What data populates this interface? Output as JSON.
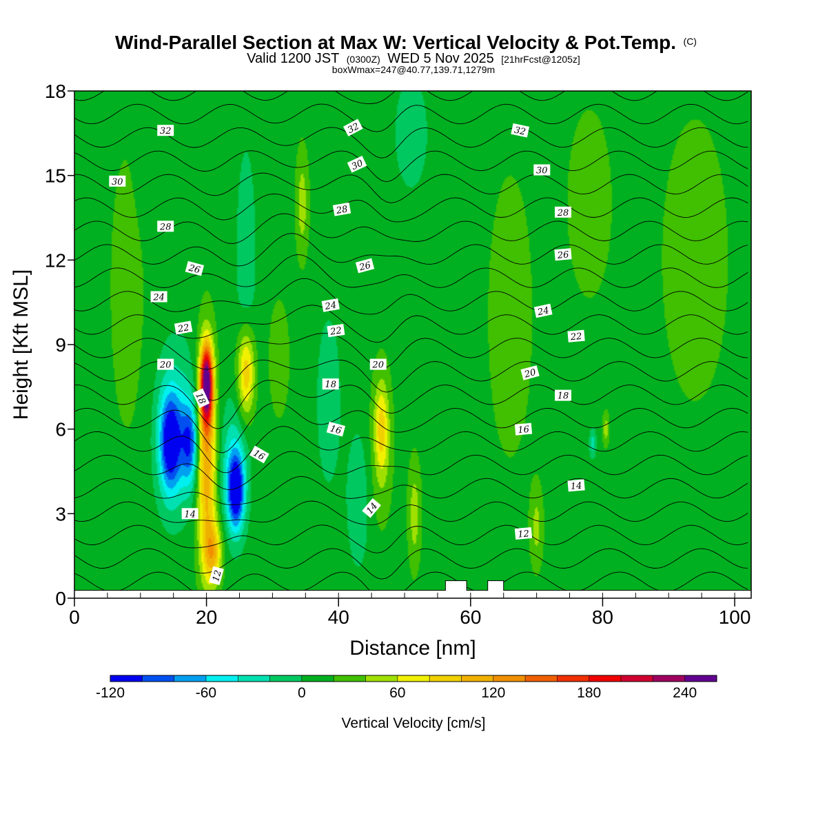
{
  "chart_data": {
    "type": "heatmap",
    "title": "Wind-Parallel Section at Max W: Vertical Velocity & Pot.Temp.",
    "title_mark": "(C)",
    "subtitle_parts": [
      "Valid 1200 JST",
      "(0300Z)",
      "WED 5 Nov 2025",
      "[21hrFcst@1205z]"
    ],
    "box_text": "boxWmax=247@40.77,139.71,1279m",
    "xlabel": "Distance [nm]",
    "ylabel": "Height [Kft MSL]",
    "xlim": [
      0,
      102.5
    ],
    "ylim": [
      0,
      18
    ],
    "x_ticks": [
      0,
      20,
      40,
      60,
      80,
      100
    ],
    "y_ticks": [
      0,
      3,
      6,
      9,
      12,
      15,
      18
    ],
    "colorbar": {
      "title": "Vertical Velocity [cm/s]",
      "min": -120,
      "step": 20,
      "labels": [
        -120,
        -60,
        0,
        60,
        120,
        180,
        240
      ],
      "colors": [
        "#0000f0",
        "#0050f0",
        "#00a0f0",
        "#00f0f0",
        "#00e0b0",
        "#00c860",
        "#00b020",
        "#40c000",
        "#a0e000",
        "#f0f000",
        "#f0d000",
        "#f0b000",
        "#f09000",
        "#f06000",
        "#f03000",
        "#f00000",
        "#d00030",
        "#a00060",
        "#600090"
      ]
    },
    "background_w": 10,
    "cells": [
      {
        "x": 14.5,
        "z": 5.5,
        "sx": 1.6,
        "sz": 1.7,
        "w": -115
      },
      {
        "x": 17.5,
        "z": 5.5,
        "sx": 1.3,
        "sz": 1.5,
        "w": -90
      },
      {
        "x": 15.5,
        "z": 6.0,
        "sx": 3.0,
        "sz": 2.8,
        "w": -45
      },
      {
        "x": 20.0,
        "z": 7.6,
        "sx": 0.9,
        "sz": 1.3,
        "w": 230
      },
      {
        "x": 20.0,
        "z": 5.0,
        "sx": 1.5,
        "sz": 3.8,
        "w": 110
      },
      {
        "x": 21.0,
        "z": 1.6,
        "sx": 1.4,
        "sz": 1.1,
        "w": 80
      },
      {
        "x": 24.5,
        "z": 3.8,
        "sx": 1.2,
        "sz": 1.3,
        "w": -120
      },
      {
        "x": 24.0,
        "z": 4.5,
        "sx": 2.0,
        "sz": 2.2,
        "w": -50
      },
      {
        "x": 26.0,
        "z": 8.0,
        "sx": 1.3,
        "sz": 1.6,
        "w": 90
      },
      {
        "x": 31.0,
        "z": 8.5,
        "sx": 1.5,
        "sz": 2.0,
        "w": 30
      },
      {
        "x": 26.0,
        "z": 12.0,
        "sx": 1.5,
        "sz": 4.0,
        "w": -25
      },
      {
        "x": 38.5,
        "z": 7.0,
        "sx": 1.8,
        "sz": 3.0,
        "w": -25
      },
      {
        "x": 46.5,
        "z": 6.0,
        "sx": 1.0,
        "sz": 1.5,
        "w": 55
      },
      {
        "x": 46.5,
        "z": 5.5,
        "sx": 1.8,
        "sz": 3.0,
        "w": 30
      },
      {
        "x": 43.0,
        "z": 3.5,
        "sx": 1.8,
        "sz": 2.5,
        "w": -25
      },
      {
        "x": 51.5,
        "z": 3.0,
        "sx": 1.0,
        "sz": 2.0,
        "w": 40
      },
      {
        "x": 34.5,
        "z": 14.0,
        "sx": 1.0,
        "sz": 2.0,
        "w": 40
      },
      {
        "x": 51.0,
        "z": 16.5,
        "sx": 2.5,
        "sz": 2.0,
        "w": -25
      },
      {
        "x": 45.0,
        "z": 15.5,
        "sx": 2.0,
        "sz": 3.0,
        "w": 0
      },
      {
        "x": 59.0,
        "z": 6.0,
        "sx": 2.0,
        "sz": 4.0,
        "w": 0
      },
      {
        "x": 66.0,
        "z": 10.0,
        "sx": 4.0,
        "sz": 6.0,
        "w": 20
      },
      {
        "x": 78.0,
        "z": 14.0,
        "sx": 4.0,
        "sz": 4.0,
        "w": 20
      },
      {
        "x": 94.0,
        "z": 12.0,
        "sx": 6.0,
        "sz": 6.0,
        "w": 20
      },
      {
        "x": 87.0,
        "z": 5.0,
        "sx": 3.0,
        "sz": 3.0,
        "w": 0
      },
      {
        "x": 78.5,
        "z": 5.5,
        "sx": 0.5,
        "sz": 0.5,
        "w": -40
      },
      {
        "x": 80.5,
        "z": 6.0,
        "sx": 0.5,
        "sz": 0.6,
        "w": 40
      },
      {
        "x": 8.0,
        "z": 11.0,
        "sx": 3.0,
        "sz": 6.0,
        "w": 20
      },
      {
        "x": 4.0,
        "z": 4.0,
        "sx": 2.0,
        "sz": 2.0,
        "w": -5
      },
      {
        "x": 11.0,
        "z": 14.5,
        "sx": 3.0,
        "sz": 2.0,
        "w": -5
      },
      {
        "x": 70.0,
        "z": 2.5,
        "sx": 1.0,
        "sz": 1.5,
        "w": 35
      }
    ],
    "theta_values": [
      11,
      12,
      13,
      14,
      15,
      16,
      17,
      18,
      19,
      20,
      21,
      22,
      23,
      24,
      25,
      26,
      27,
      28,
      29,
      30,
      31,
      32,
      33
    ],
    "contour_labels": [
      {
        "text": "32",
        "x": 13.8,
        "z": 16.6,
        "rot": 0
      },
      {
        "text": "32",
        "x": 42.2,
        "z": 16.7,
        "rot": -28
      },
      {
        "text": "32",
        "x": 67.5,
        "z": 16.6,
        "rot": 12
      },
      {
        "text": "30",
        "x": 6.5,
        "z": 14.8,
        "rot": 0
      },
      {
        "text": "30",
        "x": 42.8,
        "z": 15.4,
        "rot": -25
      },
      {
        "text": "30",
        "x": 70.8,
        "z": 15.2,
        "rot": 0
      },
      {
        "text": "28",
        "x": 13.8,
        "z": 13.2,
        "rot": 0
      },
      {
        "text": "28",
        "x": 40.5,
        "z": 13.8,
        "rot": -10
      },
      {
        "text": "28",
        "x": 74.0,
        "z": 13.7,
        "rot": 0
      },
      {
        "text": "26",
        "x": 18.2,
        "z": 11.7,
        "rot": 15
      },
      {
        "text": "26",
        "x": 44.0,
        "z": 11.8,
        "rot": -15
      },
      {
        "text": "26",
        "x": 74.0,
        "z": 12.2,
        "rot": -5
      },
      {
        "text": "24",
        "x": 12.8,
        "z": 10.7,
        "rot": 0
      },
      {
        "text": "24",
        "x": 38.8,
        "z": 10.4,
        "rot": -10
      },
      {
        "text": "24",
        "x": 71.0,
        "z": 10.2,
        "rot": -12
      },
      {
        "text": "22",
        "x": 16.5,
        "z": 9.6,
        "rot": -10
      },
      {
        "text": "22",
        "x": 39.6,
        "z": 9.5,
        "rot": -8
      },
      {
        "text": "22",
        "x": 76.0,
        "z": 9.3,
        "rot": -5
      },
      {
        "text": "20",
        "x": 13.8,
        "z": 8.3,
        "rot": 0
      },
      {
        "text": "20",
        "x": 46.0,
        "z": 8.3,
        "rot": 0
      },
      {
        "text": "20",
        "x": 69.0,
        "z": 8.0,
        "rot": -15
      },
      {
        "text": "18",
        "x": 19.2,
        "z": 7.1,
        "rot": 65
      },
      {
        "text": "18",
        "x": 38.8,
        "z": 7.6,
        "rot": 0
      },
      {
        "text": "18",
        "x": 74.0,
        "z": 7.2,
        "rot": 0
      },
      {
        "text": "16",
        "x": 28.0,
        "z": 5.1,
        "rot": 30
      },
      {
        "text": "16",
        "x": 39.6,
        "z": 6.0,
        "rot": 15
      },
      {
        "text": "16",
        "x": 68.0,
        "z": 6.0,
        "rot": -5
      },
      {
        "text": "14",
        "x": 17.5,
        "z": 3.0,
        "rot": 0
      },
      {
        "text": "14",
        "x": 45.0,
        "z": 3.2,
        "rot": -50
      },
      {
        "text": "14",
        "x": 76.0,
        "z": 4.0,
        "rot": -5
      },
      {
        "text": "12",
        "x": 21.5,
        "z": 0.8,
        "rot": -75
      },
      {
        "text": "12",
        "x": 68.0,
        "z": 2.3,
        "rot": -5
      }
    ],
    "terrain": [
      [
        0,
        0.28
      ],
      [
        56.2,
        0.28
      ],
      [
        56.2,
        0.62
      ],
      [
        59.4,
        0.62
      ],
      [
        59.4,
        0.28
      ],
      [
        62.6,
        0.28
      ],
      [
        62.6,
        0.62
      ],
      [
        65.0,
        0.62
      ],
      [
        65.0,
        0.28
      ],
      [
        102.5,
        0.28
      ]
    ]
  }
}
